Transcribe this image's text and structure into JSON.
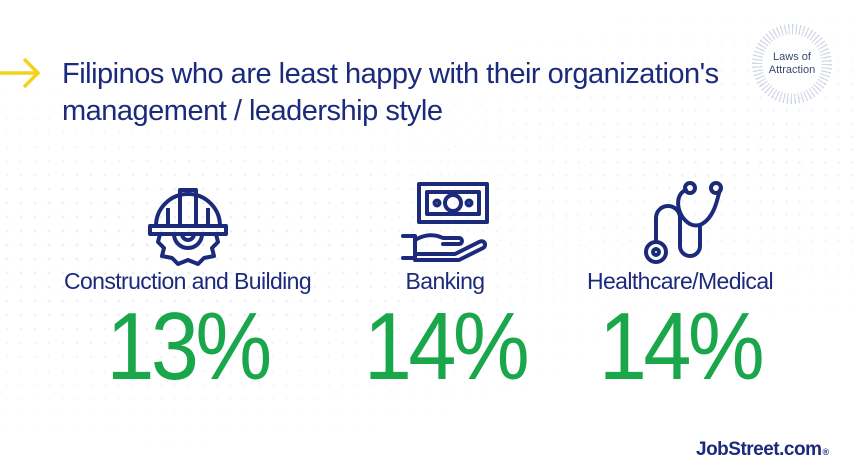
{
  "title_line1": "Filipinos who are least happy with their organization's",
  "title_line2": "management / leadership style",
  "badge": {
    "line1": "Laws of",
    "line2": "Attraction"
  },
  "stats": [
    {
      "label": "Construction and Building",
      "value": "13%",
      "icon": "hard-hat-gear-icon"
    },
    {
      "label": "Banking",
      "value": "14%",
      "icon": "money-hand-icon"
    },
    {
      "label": "Healthcare/Medical",
      "value": "14%",
      "icon": "stethoscope-icon"
    }
  ],
  "logo": {
    "text": "JobStreet.com",
    "mark": "®"
  },
  "colors": {
    "navy": "#1b2a7a",
    "green": "#1aa64a",
    "arrow": "#f2d21b"
  }
}
